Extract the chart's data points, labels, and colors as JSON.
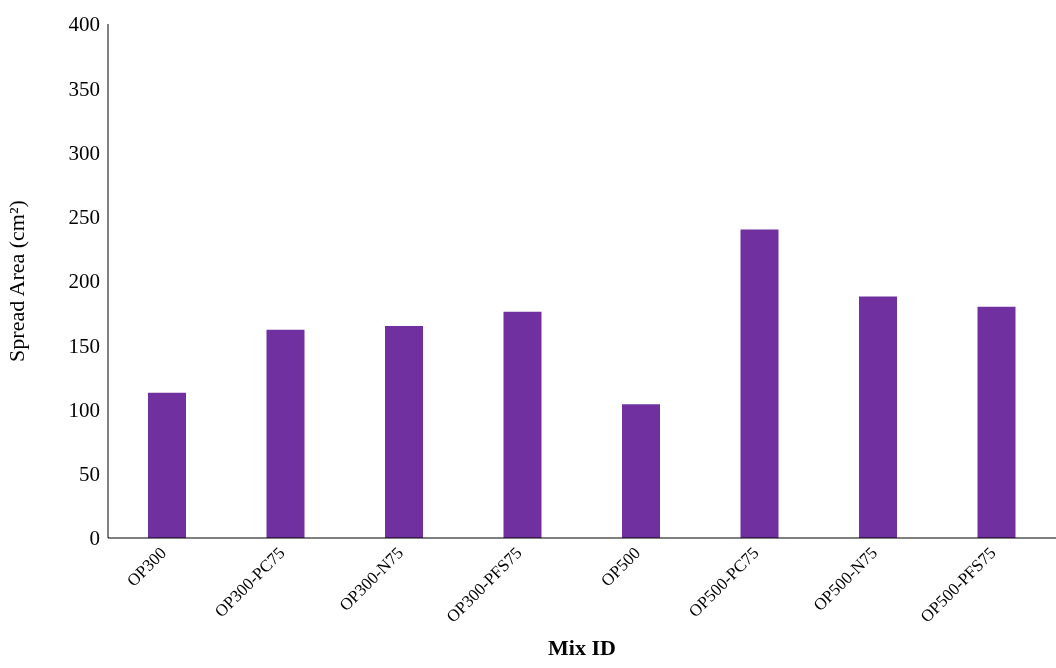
{
  "chart_data": {
    "type": "bar",
    "xlabel": "Mix ID",
    "ylabel": "Spread Area (cm²)",
    "categories": [
      "OP300",
      "OP300-PC75",
      "OP300-N75",
      "OP300-PFS75",
      "OP500",
      "OP500-PC75",
      "OP500-N75",
      "OP500-PFS75"
    ],
    "values": [
      113,
      162,
      165,
      176,
      104,
      240,
      188,
      180
    ],
    "color": "#7030a0",
    "ylim": [
      0,
      400
    ],
    "yticks": [
      0,
      50,
      100,
      150,
      200,
      250,
      300,
      350,
      400
    ],
    "grid": false,
    "legend": false
  }
}
